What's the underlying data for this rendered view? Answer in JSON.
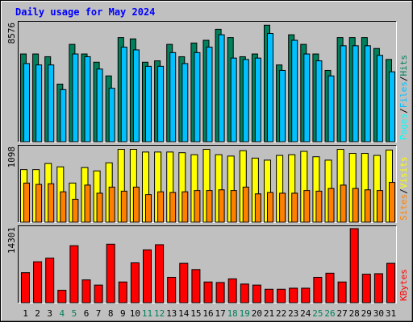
{
  "title": "Daily usage for May 2024",
  "colors": {
    "background": "#c0c0c0",
    "title": "#0000ff",
    "hits": "#00805c",
    "files": "#00c0ff",
    "pages": "#00ffff",
    "visits": "#ffff00",
    "sites": "#ff8000",
    "kbytes": "#ff0000",
    "weekend_label": "#00805c",
    "weekday_label": "#000000"
  },
  "legend": {
    "pages": "Pages",
    "files": "Files",
    "hits": "Hits",
    "sites": "Sites",
    "visits": "Visits",
    "kbytes": "KBytes",
    "sep": "/"
  },
  "chart_data": [
    {
      "type": "bar",
      "title": "Daily usage for May 2024",
      "panel": "hits-files-pages",
      "ymax_label": "8576",
      "ylim": [
        0,
        8576
      ],
      "categories": [
        "1",
        "2",
        "3",
        "4",
        "5",
        "6",
        "7",
        "8",
        "9",
        "10",
        "11",
        "12",
        "13",
        "14",
        "15",
        "16",
        "17",
        "18",
        "19",
        "20",
        "21",
        "22",
        "23",
        "24",
        "25",
        "26",
        "27",
        "28",
        "29",
        "30",
        "31"
      ],
      "weekend_days": [
        "4",
        "5",
        "11",
        "12",
        "18",
        "19",
        "25",
        "26"
      ],
      "series": [
        {
          "name": "Hits",
          "values": [
            6400,
            6400,
            6200,
            4200,
            7100,
            6400,
            5800,
            4800,
            7600,
            7500,
            5800,
            5900,
            7100,
            6200,
            7200,
            7400,
            8200,
            7600,
            6200,
            6400,
            8500,
            5600,
            7800,
            7100,
            6400,
            5200,
            7600,
            7600,
            7600,
            6800,
            6000
          ]
        },
        {
          "name": "Files",
          "values": [
            5700,
            5600,
            5600,
            3800,
            6400,
            6200,
            5300,
            3900,
            6900,
            6700,
            5500,
            5500,
            6500,
            5700,
            6500,
            6900,
            7800,
            6100,
            6000,
            6100,
            7900,
            5200,
            7400,
            6400,
            5900,
            4800,
            7000,
            7000,
            7000,
            6300,
            5100
          ]
        }
      ]
    },
    {
      "type": "bar",
      "panel": "sites-visits",
      "ymax_label": "1098",
      "ylim": [
        0,
        1098
      ],
      "categories": [
        "1",
        "2",
        "3",
        "4",
        "5",
        "6",
        "7",
        "8",
        "9",
        "10",
        "11",
        "12",
        "13",
        "14",
        "15",
        "16",
        "17",
        "18",
        "19",
        "20",
        "21",
        "22",
        "23",
        "24",
        "25",
        "26",
        "27",
        "28",
        "29",
        "30",
        "31"
      ],
      "series": [
        {
          "name": "Visits",
          "values": [
            780,
            780,
            870,
            820,
            580,
            810,
            760,
            880,
            1080,
            1080,
            1040,
            1040,
            1040,
            1030,
            1000,
            1080,
            1000,
            980,
            1060,
            950,
            920,
            990,
            1000,
            1050,
            970,
            920,
            1080,
            1020,
            1020,
            990,
            1070
          ]
        },
        {
          "name": "Sites",
          "values": [
            580,
            560,
            570,
            450,
            340,
            550,
            430,
            520,
            460,
            520,
            410,
            450,
            440,
            450,
            470,
            470,
            480,
            470,
            520,
            420,
            440,
            430,
            430,
            470,
            460,
            500,
            550,
            500,
            480,
            470,
            590
          ]
        }
      ]
    },
    {
      "type": "bar",
      "panel": "kbytes",
      "ymax_label": "14301",
      "ylim": [
        0,
        14301
      ],
      "categories": [
        "1",
        "2",
        "3",
        "4",
        "5",
        "6",
        "7",
        "8",
        "9",
        "10",
        "11",
        "12",
        "13",
        "14",
        "15",
        "16",
        "17",
        "18",
        "19",
        "20",
        "21",
        "22",
        "23",
        "24",
        "25",
        "26",
        "27",
        "28",
        "29",
        "30",
        "31"
      ],
      "series": [
        {
          "name": "KBytes",
          "values": [
            5800,
            7900,
            8600,
            2400,
            11000,
            4400,
            3400,
            11300,
            4000,
            7700,
            10200,
            11200,
            4900,
            7600,
            6400,
            4000,
            3900,
            4600,
            3600,
            3400,
            2600,
            2600,
            2800,
            2800,
            4900,
            5700,
            4000,
            14301,
            5500,
            5600,
            7600
          ]
        }
      ]
    }
  ]
}
